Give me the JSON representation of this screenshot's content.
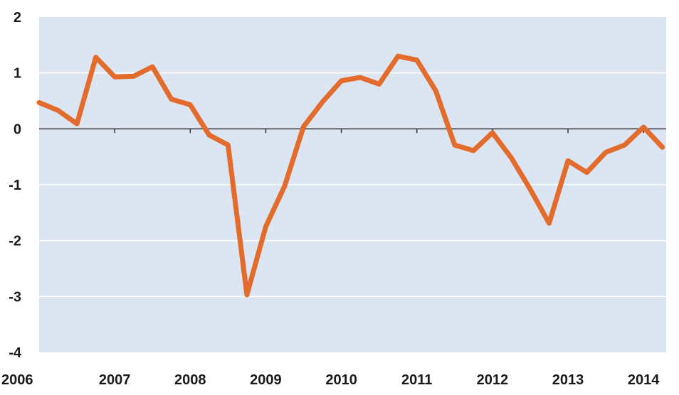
{
  "chart_data": {
    "type": "line",
    "title": "",
    "xlabel": "",
    "ylabel": "",
    "ylim": [
      -4,
      2
    ],
    "xlim": [
      2006.0,
      2014.3
    ],
    "yticks": [
      "2",
      "1",
      "0",
      "-1",
      "-2",
      "-3",
      "-4"
    ],
    "xticks": [
      "2006",
      "2007",
      "2008",
      "2009",
      "2010",
      "2011",
      "2012",
      "2013",
      "2014"
    ],
    "grid": true,
    "legend": "none",
    "colors": {
      "plot_bg": "#dce6f2",
      "line": "#e36c2c",
      "grid": "#ffffff",
      "zero_line": "#333333"
    },
    "series": [
      {
        "x": [
          2006.0,
          2006.25,
          2006.5,
          2006.75,
          2007.0,
          2007.25,
          2007.5,
          2007.75,
          2008.0,
          2008.25,
          2008.5,
          2008.75,
          2009.0,
          2009.25,
          2009.5,
          2009.75,
          2010.0,
          2010.25,
          2010.5,
          2010.75,
          2011.0,
          2011.25,
          2011.5,
          2011.75,
          2012.0,
          2012.25,
          2012.5,
          2012.75,
          2013.0,
          2013.25,
          2013.5,
          2013.75,
          2014.0,
          2014.25
        ],
        "values": [
          0.47,
          0.33,
          0.09,
          1.28,
          0.93,
          0.94,
          1.11,
          0.53,
          0.43,
          -0.11,
          -0.29,
          -2.97,
          -1.75,
          -1.02,
          0.04,
          0.48,
          0.86,
          0.92,
          0.8,
          1.3,
          1.23,
          0.68,
          -0.29,
          -0.39,
          -0.07,
          -0.52,
          -1.08,
          -1.69,
          -0.57,
          -0.78,
          -0.42,
          -0.29,
          0.03,
          -0.33
        ]
      }
    ]
  }
}
